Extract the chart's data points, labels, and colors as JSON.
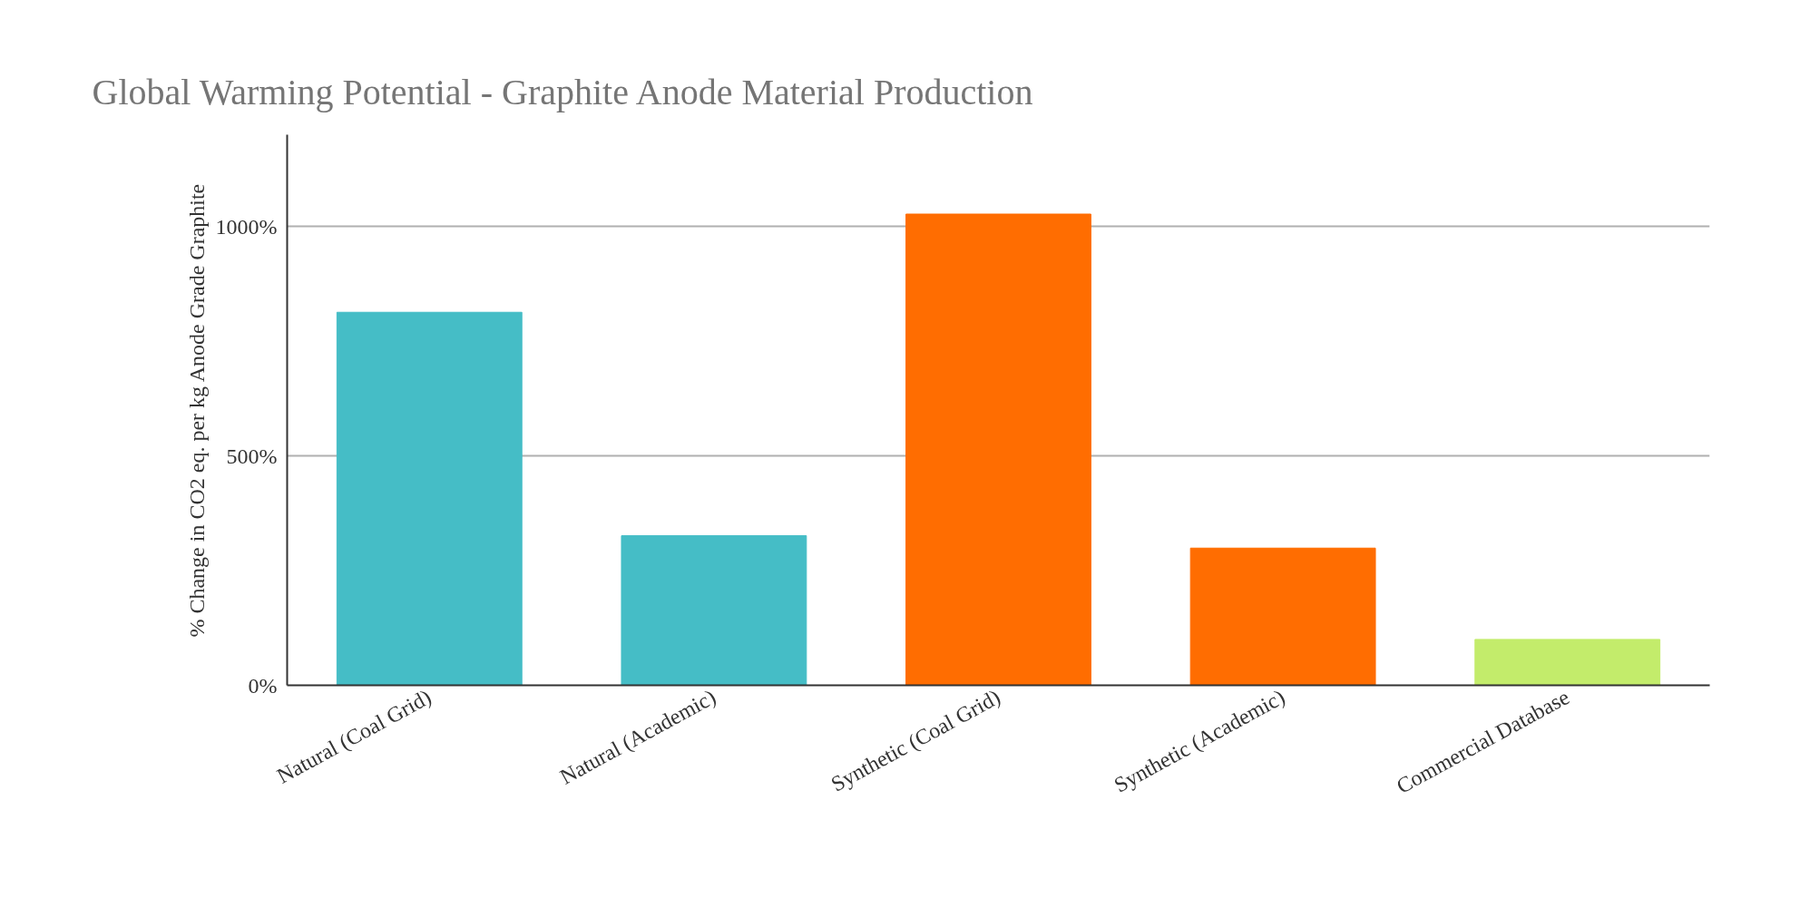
{
  "chart_data": {
    "type": "bar",
    "title": "Global Warming Potential - Graphite Anode Material Production",
    "ylabel": "% Change in CO2 eq. per kg Anode Grade Graphite",
    "categories": [
      "Natural (Coal Grid)",
      "Natural (Academic)",
      "Synthetic (Coal Grid)",
      "Synthetic (Academic)",
      "Commercial Database"
    ],
    "values": [
      813,
      326,
      1027,
      299,
      100
    ],
    "colors": [
      "#45bdc6",
      "#45bdc6",
      "#ff6d01",
      "#ff6d01",
      "#c3ec6b"
    ],
    "ylim": [
      0,
      1200
    ],
    "yticks": [
      {
        "value": 0,
        "label": "0%"
      },
      {
        "value": 500,
        "label": "500%"
      },
      {
        "value": 1000,
        "label": "1000%"
      }
    ],
    "grid": "y"
  }
}
